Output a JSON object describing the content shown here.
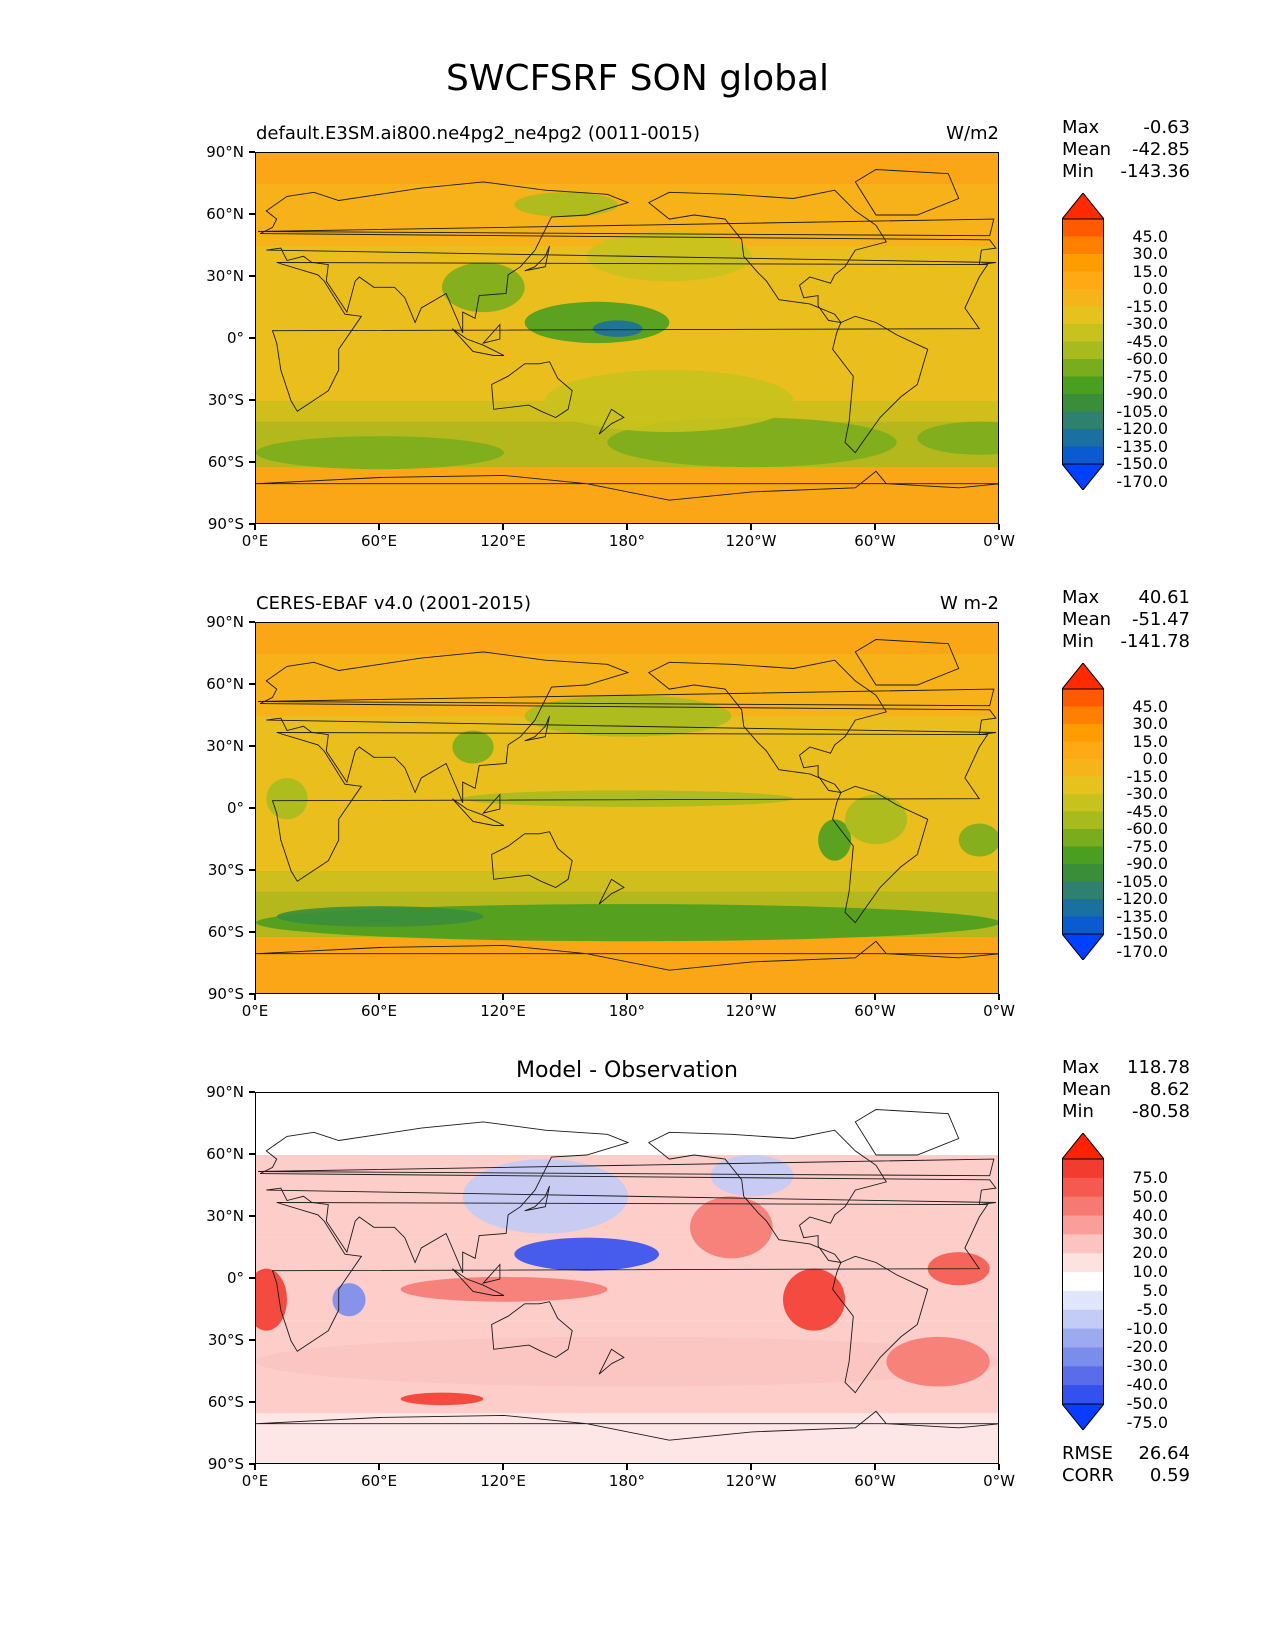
{
  "figure": {
    "title": "SWCFSRF SON global"
  },
  "panels": [
    {
      "id": "model",
      "left_title": "default.E3SM.ai800.ne4pg2_ne4pg2 (0011-0015)",
      "right_title": "W/m2",
      "center_title": "",
      "stats": [
        {
          "label": "Max",
          "value": "-0.63"
        },
        {
          "label": "Mean",
          "value": "-42.85"
        },
        {
          "label": "Min",
          "value": "-143.36"
        }
      ],
      "colorbar_labels": [
        "45.0",
        "30.0",
        "15.0",
        "0.0",
        "-15.0",
        "-30.0",
        "-45.0",
        "-60.0",
        "-75.0",
        "-90.0",
        "-105.0",
        "-120.0",
        "-135.0",
        "-150.0",
        "-170.0"
      ],
      "colorbar_colors": [
        "#ff2a00",
        "#ff5a00",
        "#ff7f00",
        "#ff9c00",
        "#ffa915",
        "#f5b419",
        "#e6c21e",
        "#c8c21e",
        "#a8bb1e",
        "#7aad1e",
        "#4a9e20",
        "#3a8e3a",
        "#2e8070",
        "#1a70a0",
        "#0b5bd0",
        "#0040ff"
      ],
      "regions": [
        {
          "lat": 65,
          "lon": 150,
          "ry": 6,
          "rx": 25,
          "value": -70
        },
        {
          "lat": 25,
          "lon": 110,
          "ry": 12,
          "rx": 20,
          "value": -90
        },
        {
          "lat": 8,
          "lon": 165,
          "ry": 10,
          "rx": 35,
          "value": -100
        },
        {
          "lat": 5,
          "lon": 175,
          "ry": 4,
          "rx": 12,
          "value": -140
        },
        {
          "lat": -55,
          "lon": 60,
          "ry": 8,
          "rx": 60,
          "value": -85
        },
        {
          "lat": -50,
          "lon": 240,
          "ry": 12,
          "rx": 70,
          "value": -80
        },
        {
          "lat": -48,
          "lon": 350,
          "ry": 8,
          "rx": 30,
          "value": -90
        },
        {
          "lat": 40,
          "lon": 200,
          "ry": 12,
          "rx": 40,
          "value": -60
        },
        {
          "lat": -30,
          "lon": 200,
          "ry": 15,
          "rx": 60,
          "value": -55
        }
      ]
    },
    {
      "id": "obs",
      "left_title": "CERES-EBAF v4.0 (2001-2015)",
      "right_title": "W m-2",
      "center_title": "",
      "stats": [
        {
          "label": "Max",
          "value": "40.61"
        },
        {
          "label": "Mean",
          "value": "-51.47"
        },
        {
          "label": "Min",
          "value": "-141.78"
        }
      ],
      "colorbar_labels": [
        "45.0",
        "30.0",
        "15.0",
        "0.0",
        "-15.0",
        "-30.0",
        "-45.0",
        "-60.0",
        "-75.0",
        "-90.0",
        "-105.0",
        "-120.0",
        "-135.0",
        "-150.0",
        "-170.0"
      ],
      "colorbar_colors": [
        "#ff2a00",
        "#ff5a00",
        "#ff7f00",
        "#ff9c00",
        "#ffa915",
        "#f5b419",
        "#e6c21e",
        "#c8c21e",
        "#a8bb1e",
        "#7aad1e",
        "#4a9e20",
        "#3a8e3a",
        "#2e8070",
        "#1a70a0",
        "#0b5bd0",
        "#0040ff"
      ],
      "regions": [
        {
          "lat": -55,
          "lon": 180,
          "ry": 9,
          "rx": 180,
          "value": -95
        },
        {
          "lat": -52,
          "lon": 60,
          "ry": 5,
          "rx": 50,
          "value": -120
        },
        {
          "lat": 45,
          "lon": 180,
          "ry": 10,
          "rx": 50,
          "value": -70
        },
        {
          "lat": 5,
          "lon": 180,
          "ry": 4,
          "rx": 80,
          "value": -65
        },
        {
          "lat": -15,
          "lon": 280,
          "ry": 10,
          "rx": 8,
          "value": -100
        },
        {
          "lat": -15,
          "lon": 350,
          "ry": 8,
          "rx": 10,
          "value": -90
        },
        {
          "lat": 30,
          "lon": 105,
          "ry": 8,
          "rx": 10,
          "value": -85
        },
        {
          "lat": -5,
          "lon": 300,
          "ry": 12,
          "rx": 15,
          "value": -70
        },
        {
          "lat": 5,
          "lon": 15,
          "ry": 10,
          "rx": 10,
          "value": -65
        }
      ]
    },
    {
      "id": "diff",
      "left_title": "",
      "right_title": "",
      "center_title": "Model - Observation",
      "stats": [
        {
          "label": "Max",
          "value": "118.78"
        },
        {
          "label": "Mean",
          "value": "8.62"
        },
        {
          "label": "Min",
          "value": "-80.58"
        }
      ],
      "colorbar_labels": [
        "75.0",
        "50.0",
        "40.0",
        "30.0",
        "20.0",
        "10.0",
        "5.0",
        "-5.0",
        "-10.0",
        "-20.0",
        "-30.0",
        "-40.0",
        "-50.0",
        "-75.0"
      ],
      "colorbar_colors": [
        "#ff2200",
        "#f33c30",
        "#f45a50",
        "#f67a72",
        "#f99e98",
        "#fbc4c0",
        "#fde2e0",
        "#ffffff",
        "#e0e6fb",
        "#c2ccf6",
        "#9caaf0",
        "#7a8cec",
        "#5a6cea",
        "#3350f0",
        "#0a3cff"
      ],
      "regions": [
        {
          "lat": 40,
          "lon": 140,
          "ry": 18,
          "rx": 40,
          "value": -20
        },
        {
          "lat": 12,
          "lon": 160,
          "ry": 8,
          "rx": 35,
          "value": -70
        },
        {
          "lat": -10,
          "lon": 45,
          "ry": 8,
          "rx": 8,
          "value": -40
        },
        {
          "lat": -10,
          "lon": 270,
          "ry": 15,
          "rx": 15,
          "value": 70
        },
        {
          "lat": -10,
          "lon": 5,
          "ry": 15,
          "rx": 10,
          "value": 60
        },
        {
          "lat": 5,
          "lon": 340,
          "ry": 8,
          "rx": 15,
          "value": 40
        },
        {
          "lat": -5,
          "lon": 120,
          "ry": 6,
          "rx": 50,
          "value": 30
        },
        {
          "lat": -40,
          "lon": 180,
          "ry": 12,
          "rx": 180,
          "value": 15
        },
        {
          "lat": -58,
          "lon": 90,
          "ry": 3,
          "rx": 20,
          "value": 50
        },
        {
          "lat": 25,
          "lon": 230,
          "ry": 15,
          "rx": 20,
          "value": 30
        },
        {
          "lat": 50,
          "lon": 240,
          "ry": 10,
          "rx": 20,
          "value": -15
        },
        {
          "lat": -40,
          "lon": 330,
          "ry": 12,
          "rx": 25,
          "value": 35
        }
      ]
    }
  ],
  "lat_ticks": [
    "90°N",
    "60°N",
    "30°N",
    "0°",
    "30°S",
    "60°S",
    "90°S"
  ],
  "lon_ticks": [
    "0°E",
    "60°E",
    "120°E",
    "180°",
    "120°W",
    "60°W",
    "0°W"
  ],
  "diff_summary": [
    {
      "label": "RMSE",
      "value": "26.64"
    },
    {
      "label": "CORR",
      "value": "0.59"
    }
  ]
}
